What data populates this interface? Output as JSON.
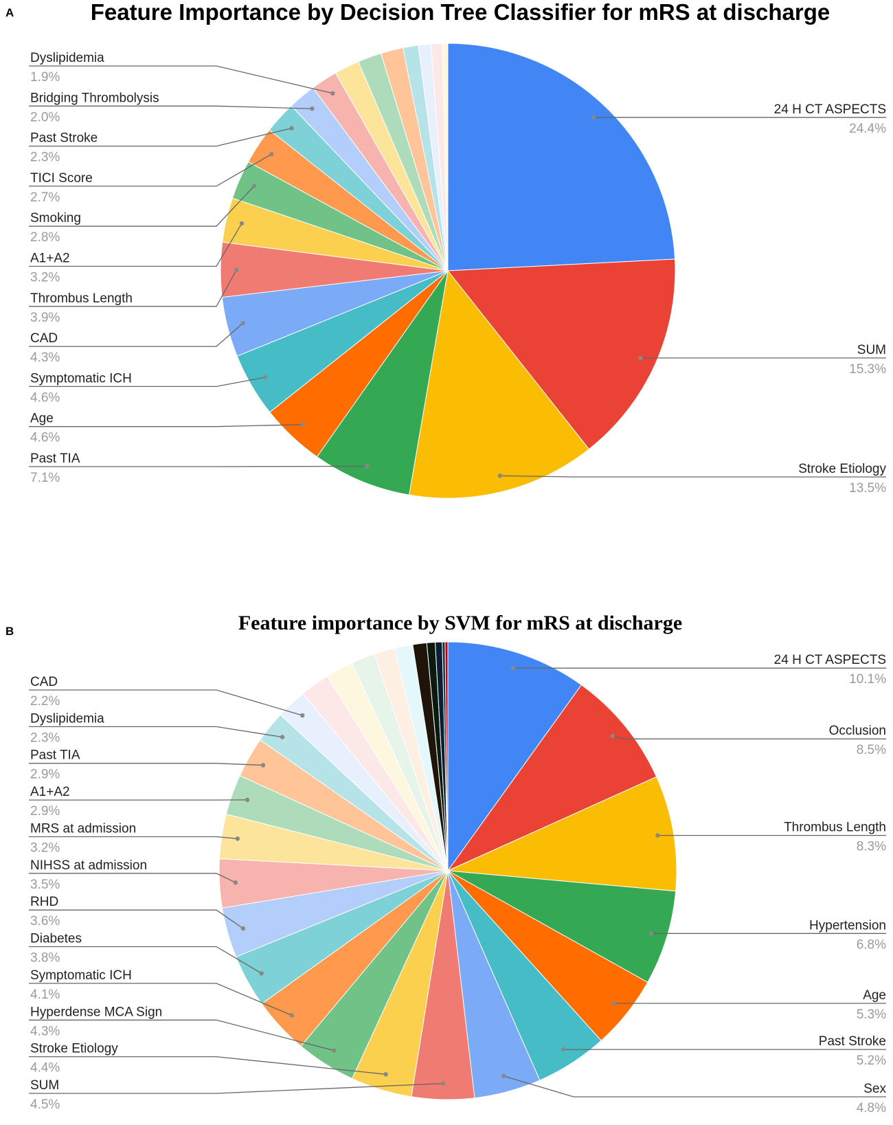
{
  "chart_data": [
    {
      "type": "pie",
      "panel": "A",
      "title": "Feature Importance by Decision Tree Classifier for mRS at discharge",
      "slices": [
        {
          "label": "24 H CT ASPECTS",
          "value": 24.4,
          "value_label": "24.4%",
          "color": "#4285F4",
          "labeled": true
        },
        {
          "label": "SUM",
          "value": 15.3,
          "value_label": "15.3%",
          "color": "#EA4335",
          "labeled": true
        },
        {
          "label": "Stroke Etiology",
          "value": 13.5,
          "value_label": "13.5%",
          "color": "#FBBC04",
          "labeled": true
        },
        {
          "label": "Past TIA",
          "value": 7.1,
          "value_label": "7.1%",
          "color": "#34A853",
          "labeled": true
        },
        {
          "label": "Age",
          "value": 4.6,
          "value_label": "4.6%",
          "color": "#FF6D01",
          "labeled": true
        },
        {
          "label": "Symptomatic ICH",
          "value": 4.6,
          "value_label": "4.6%",
          "color": "#46BDC6",
          "labeled": true
        },
        {
          "label": "CAD",
          "value": 4.3,
          "value_label": "4.3%",
          "color": "#7BAAF7",
          "labeled": true
        },
        {
          "label": "Thrombus Length",
          "value": 3.9,
          "value_label": "3.9%",
          "color": "#F07B72",
          "labeled": true
        },
        {
          "label": "A1+A2",
          "value": 3.2,
          "value_label": "3.2%",
          "color": "#FCD04F",
          "labeled": true
        },
        {
          "label": "Smoking",
          "value": 2.8,
          "value_label": "2.8%",
          "color": "#71C287",
          "labeled": true
        },
        {
          "label": "TICI Score",
          "value": 2.7,
          "value_label": "2.7%",
          "color": "#FF994D",
          "labeled": true
        },
        {
          "label": "Past Stroke",
          "value": 2.3,
          "value_label": "2.3%",
          "color": "#7ED1D7",
          "labeled": true
        },
        {
          "label": "Bridging Thrombolysis",
          "value": 2.0,
          "value_label": "2.0%",
          "color": "#B3CEFB",
          "labeled": true
        },
        {
          "label": "Dyslipidemia",
          "value": 1.9,
          "value_label": "1.9%",
          "color": "#F7B4AE",
          "labeled": true
        },
        {
          "label": "",
          "value": 1.8,
          "color": "#FDE49B",
          "labeled": false
        },
        {
          "label": "",
          "value": 1.7,
          "color": "#AEDCBA",
          "labeled": false
        },
        {
          "label": "",
          "value": 1.6,
          "color": "#FFC599",
          "labeled": false
        },
        {
          "label": "",
          "value": 1.1,
          "color": "#B5E3E7",
          "labeled": false
        },
        {
          "label": "",
          "value": 0.9,
          "color": "#E8F0FE",
          "labeled": false
        },
        {
          "label": "",
          "value": 0.8,
          "color": "#FCE8E6",
          "labeled": false
        },
        {
          "label": "",
          "value": 0.4,
          "color": "#FEF7E0",
          "labeled": false
        }
      ]
    },
    {
      "type": "pie",
      "panel": "B",
      "title": "Feature importance by SVM for mRS at discharge",
      "slices": [
        {
          "label": "24 H CT ASPECTS",
          "value": 10.1,
          "value_label": "10.1%",
          "color": "#4285F4",
          "labeled": true
        },
        {
          "label": "Occlusion",
          "value": 8.5,
          "value_label": "8.5%",
          "color": "#EA4335",
          "labeled": true
        },
        {
          "label": "Thrombus Length",
          "value": 8.3,
          "value_label": "8.3%",
          "color": "#FBBC04",
          "labeled": true
        },
        {
          "label": "Hypertension",
          "value": 6.8,
          "value_label": "6.8%",
          "color": "#34A853",
          "labeled": true
        },
        {
          "label": "Age",
          "value": 5.3,
          "value_label": "5.3%",
          "color": "#FF6D01",
          "labeled": true
        },
        {
          "label": "Past Stroke",
          "value": 5.2,
          "value_label": "5.2%",
          "color": "#46BDC6",
          "labeled": true
        },
        {
          "label": "Sex",
          "value": 4.8,
          "value_label": "4.8%",
          "color": "#7BAAF7",
          "labeled": true
        },
        {
          "label": "SUM",
          "value": 4.5,
          "value_label": "4.5%",
          "color": "#F07B72",
          "labeled": true
        },
        {
          "label": "Stroke Etiology",
          "value": 4.4,
          "value_label": "4.4%",
          "color": "#FCD04F",
          "labeled": true
        },
        {
          "label": "Hyperdense MCA Sign",
          "value": 4.3,
          "value_label": "4.3%",
          "color": "#71C287",
          "labeled": true
        },
        {
          "label": "Symptomatic ICH",
          "value": 4.1,
          "value_label": "4.1%",
          "color": "#FF994D",
          "labeled": true
        },
        {
          "label": "Diabetes",
          "value": 3.8,
          "value_label": "3.8%",
          "color": "#7ED1D7",
          "labeled": true
        },
        {
          "label": "RHD",
          "value": 3.6,
          "value_label": "3.6%",
          "color": "#B3CEFB",
          "labeled": true
        },
        {
          "label": "NIHSS at admission",
          "value": 3.5,
          "value_label": "3.5%",
          "color": "#F7B4AE",
          "labeled": true
        },
        {
          "label": "MRS at admission",
          "value": 3.2,
          "value_label": "3.2%",
          "color": "#FDE49B",
          "labeled": true
        },
        {
          "label": "A1+A2",
          "value": 2.9,
          "value_label": "2.9%",
          "color": "#AEDCBA",
          "labeled": true
        },
        {
          "label": "Past TIA",
          "value": 2.9,
          "value_label": "2.9%",
          "color": "#FFC599",
          "labeled": true
        },
        {
          "label": "Dyslipidemia",
          "value": 2.3,
          "value_label": "2.3%",
          "color": "#B5E3E7",
          "labeled": true
        },
        {
          "label": "CAD",
          "value": 2.2,
          "value_label": "2.2%",
          "color": "#E8F0FE",
          "labeled": true
        },
        {
          "label": "",
          "value": 2.1,
          "color": "#FCE8E6",
          "labeled": false
        },
        {
          "label": "",
          "value": 2.0,
          "color": "#FEF7E0",
          "labeled": false
        },
        {
          "label": "",
          "value": 1.7,
          "color": "#E6F4EA",
          "labeled": false
        },
        {
          "label": "",
          "value": 1.5,
          "color": "#FEEFE3",
          "labeled": false
        },
        {
          "label": "",
          "value": 1.3,
          "color": "#E4F7FB",
          "labeled": false
        },
        {
          "label": "",
          "value": 1.0,
          "color": "#1F140A",
          "labeled": false
        },
        {
          "label": "",
          "value": 0.6,
          "color": "#0B1A0F",
          "labeled": false
        },
        {
          "label": "",
          "value": 0.5,
          "color": "#0A1F33",
          "labeled": false
        },
        {
          "label": "",
          "value": 0.2,
          "color": "#1E2B3A",
          "labeled": false
        },
        {
          "label": "",
          "value": 0.2,
          "color": "#B3001B",
          "labeled": false
        }
      ]
    }
  ]
}
